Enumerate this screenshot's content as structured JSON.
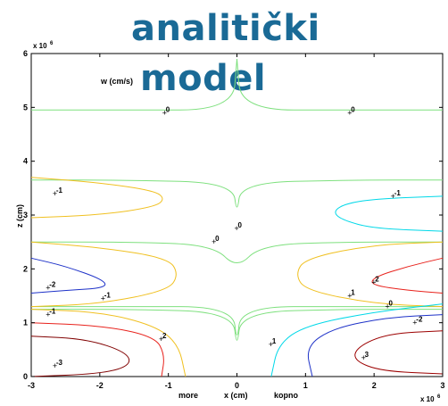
{
  "title": {
    "line1": "analitički",
    "line2": "model"
  },
  "chart_data": {
    "type": "contour",
    "field_label": "w (cm/s)",
    "xlabel": "x (cm)",
    "xlabel_left": "more",
    "xlabel_right": "kopno",
    "ylabel": "z (cm)",
    "x_multiplier": "x 10^6",
    "y_multiplier": "x 10^6",
    "xlim": [
      -3,
      3
    ],
    "ylim": [
      0,
      6
    ],
    "xticks": [
      "-3",
      "-2",
      "-1",
      "0",
      "1",
      "2",
      "3"
    ],
    "yticks": [
      "0",
      "1",
      "2",
      "3",
      "4",
      "5",
      "6"
    ],
    "colors": {
      "level_0": "#7ee07e",
      "level_1_pos": "#00d8e8",
      "level_2_pos": "#e8221c",
      "level_3_pos": "#9c0000",
      "level_1_neg": "#f0c020",
      "level_2_neg": "#1e32c8",
      "level_3_neg": "#800000"
    },
    "contours": [
      {
        "level": 0,
        "color": "level_0",
        "points": [
          [
            -3,
            4.95
          ],
          [
            -1.6,
            4.95
          ],
          [
            -0.06,
            4.95
          ],
          [
            0,
            5.9
          ]
        ]
      },
      {
        "level": 0,
        "color": "level_0",
        "points": [
          [
            0,
            5.9
          ],
          [
            0.06,
            4.95
          ],
          [
            1.6,
            4.95
          ],
          [
            3,
            4.95
          ]
        ]
      },
      {
        "level": 0,
        "color": "level_0",
        "points": [
          [
            -3,
            3.65
          ],
          [
            -1.6,
            3.65
          ],
          [
            -0.06,
            3.6
          ],
          [
            0,
            3.0
          ],
          [
            0.06,
            3.6
          ],
          [
            1.6,
            3.65
          ],
          [
            3,
            3.65
          ]
        ]
      },
      {
        "level": 0,
        "color": "level_0",
        "points": [
          [
            -3,
            2.5
          ],
          [
            -1.6,
            2.5
          ],
          [
            -0.35,
            2.45
          ],
          [
            0,
            2.0
          ],
          [
            0.35,
            2.45
          ],
          [
            1.6,
            2.5
          ],
          [
            3,
            2.5
          ]
        ]
      },
      {
        "level": 0,
        "color": "level_0",
        "points": [
          [
            -3,
            1.25
          ],
          [
            -1.6,
            1.25
          ],
          [
            -0.06,
            1.2
          ],
          [
            0,
            0.5
          ],
          [
            0.06,
            1.2
          ],
          [
            1.6,
            1.25
          ],
          [
            3,
            1.25
          ]
        ]
      },
      {
        "level": 0,
        "color": "level_0",
        "points": [
          [
            -3,
            1.3
          ],
          [
            -1.6,
            1.3
          ],
          [
            -0.06,
            1.3
          ],
          [
            0,
            0.6
          ],
          [
            0.06,
            1.3
          ],
          [
            1.6,
            1.3
          ],
          [
            3,
            1.3
          ]
        ]
      },
      {
        "level": -1,
        "color": "level_1_neg",
        "points": [
          [
            -3,
            3.7
          ],
          [
            -2.0,
            3.6
          ],
          [
            -1.2,
            3.45
          ],
          [
            -1.05,
            3.3
          ],
          [
            -1.2,
            3.15
          ],
          [
            -2.0,
            3.0
          ],
          [
            -3,
            2.95
          ]
        ]
      },
      {
        "level": 1,
        "color": "level_1_pos",
        "points": [
          [
            3,
            3.35
          ],
          [
            2.0,
            3.3
          ],
          [
            1.55,
            3.2
          ],
          [
            1.4,
            3.05
          ],
          [
            1.55,
            2.9
          ],
          [
            2.0,
            2.75
          ],
          [
            3,
            2.7
          ]
        ]
      },
      {
        "level": -1,
        "color": "level_1_neg",
        "points": [
          [
            -3,
            2.5
          ],
          [
            -2.0,
            2.4
          ],
          [
            -1.0,
            2.2
          ],
          [
            -0.85,
            1.9
          ],
          [
            -1.0,
            1.6
          ],
          [
            -2.0,
            1.35
          ],
          [
            -3,
            1.3
          ]
        ]
      },
      {
        "level": -2,
        "color": "level_2_neg",
        "points": [
          [
            -3,
            2.2
          ],
          [
            -2.5,
            2.05
          ],
          [
            -1.95,
            1.8
          ],
          [
            -1.9,
            1.65
          ],
          [
            -2.5,
            1.6
          ],
          [
            -3,
            1.55
          ]
        ]
      },
      {
        "level": 1,
        "color": "level_1_neg",
        "points": [
          [
            3,
            2.5
          ],
          [
            2.0,
            2.45
          ],
          [
            1.0,
            2.2
          ],
          [
            0.85,
            1.9
          ],
          [
            1.0,
            1.6
          ],
          [
            2.0,
            1.35
          ],
          [
            3,
            1.3
          ]
        ]
      },
      {
        "level": 2,
        "color": "level_2_pos",
        "points": [
          [
            3,
            2.2
          ],
          [
            2.5,
            2.05
          ],
          [
            2.0,
            1.85
          ],
          [
            1.95,
            1.7
          ],
          [
            2.5,
            1.6
          ],
          [
            3,
            1.55
          ]
        ]
      },
      {
        "level": 1,
        "color": "level_1_neg",
        "points": [
          [
            -3,
            1.25
          ],
          [
            -2.0,
            1.2
          ],
          [
            -1.2,
            0.95
          ],
          [
            -0.85,
            0.6
          ],
          [
            -0.75,
            0.0
          ]
        ]
      },
      {
        "level": 2,
        "color": "level_2_pos",
        "points": [
          [
            -3,
            1.0
          ],
          [
            -2.0,
            0.95
          ],
          [
            -1.2,
            0.75
          ],
          [
            -1.05,
            0.4
          ],
          [
            -1.1,
            0.0
          ]
        ]
      },
      {
        "level": 3,
        "color": "level_3_neg",
        "points": [
          [
            -3,
            0.75
          ],
          [
            -2.2,
            0.7
          ],
          [
            -1.6,
            0.45
          ],
          [
            -1.55,
            0.2
          ],
          [
            -2.0,
            0.05
          ],
          [
            -3,
            0.0
          ]
        ]
      },
      {
        "level": 1,
        "color": "level_1_pos",
        "points": [
          [
            3,
            1.35
          ],
          [
            2.0,
            1.2
          ],
          [
            1.0,
            0.95
          ],
          [
            0.6,
            0.6
          ],
          [
            0.5,
            0.0
          ]
        ]
      },
      {
        "level": 2,
        "color": "level_2_neg",
        "points": [
          [
            3,
            1.15
          ],
          [
            2.2,
            1.1
          ],
          [
            1.4,
            0.9
          ],
          [
            1.0,
            0.55
          ],
          [
            1.1,
            0.0
          ]
        ]
      },
      {
        "level": 3,
        "color": "level_3_pos",
        "points": [
          [
            3,
            0.85
          ],
          [
            2.2,
            0.8
          ],
          [
            1.75,
            0.55
          ],
          [
            1.7,
            0.3
          ],
          [
            2.1,
            0.1
          ],
          [
            3,
            0.05
          ]
        ]
      }
    ],
    "labels": [
      {
        "text": "0",
        "x": -1.05,
        "y": 4.9
      },
      {
        "text": "0",
        "x": 1.65,
        "y": 4.9
      },
      {
        "text": "-1",
        "x": -2.65,
        "y": 3.4
      },
      {
        "text": "-1",
        "x": 2.28,
        "y": 3.35
      },
      {
        "text": "0",
        "x": 0.0,
        "y": 2.75
      },
      {
        "text": "0",
        "x": -0.33,
        "y": 2.5
      },
      {
        "text": "-2",
        "x": -2.75,
        "y": 1.65
      },
      {
        "text": "-1",
        "x": -1.95,
        "y": 1.45
      },
      {
        "text": "2",
        "x": 2.0,
        "y": 1.75
      },
      {
        "text": "1",
        "x": 1.65,
        "y": 1.5
      },
      {
        "text": "0",
        "x": 2.2,
        "y": 1.3
      },
      {
        "text": "-1",
        "x": -2.75,
        "y": 1.15
      },
      {
        "text": "-2",
        "x": 2.6,
        "y": 1.0
      },
      {
        "text": "2",
        "x": -1.1,
        "y": 0.7
      },
      {
        "text": "1",
        "x": 0.5,
        "y": 0.6
      },
      {
        "text": "-3",
        "x": -2.65,
        "y": 0.2
      },
      {
        "text": "3",
        "x": 1.85,
        "y": 0.35
      }
    ]
  }
}
